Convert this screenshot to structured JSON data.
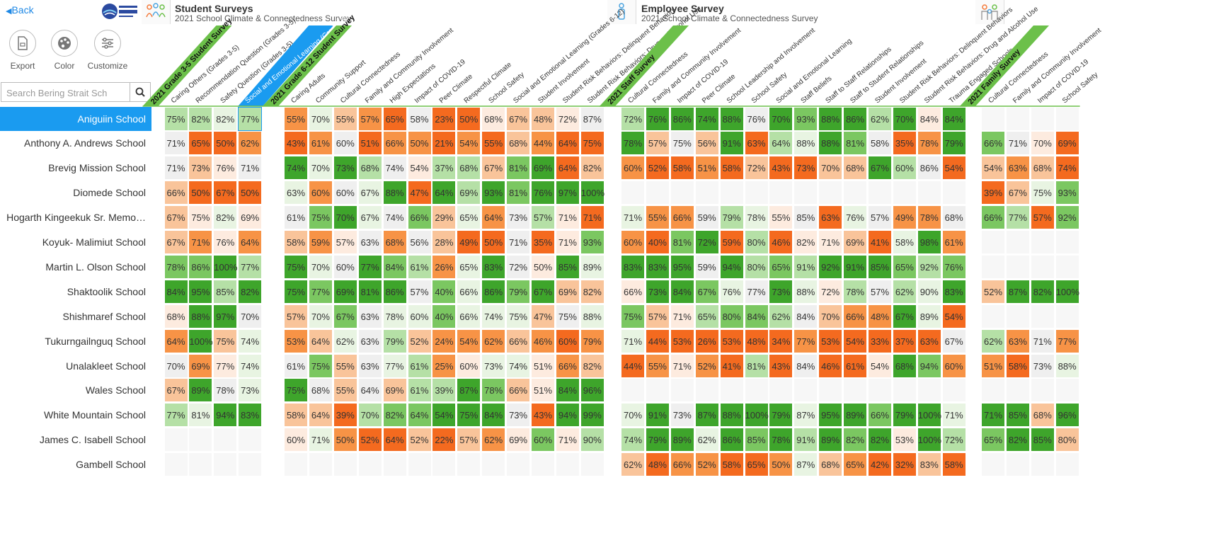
{
  "header": {
    "back_label": "Back",
    "student_title": "Student Surveys",
    "student_sub": "2021 School Climate & Connectedness Survey",
    "employee_title": "Employee Survey",
    "employee_sub": "2021 School Climate & Connectedness Survey"
  },
  "toolbar": {
    "export_label": "Export",
    "color_label": "Color",
    "customize_label": "Customize"
  },
  "search": {
    "placeholder": "Search Bering Strait Sch"
  },
  "colors": {
    "dark_green": "#3ea52b",
    "mid_green": "#7bc761",
    "light_green": "#b5e0a6",
    "pale_green": "#e8f4e2",
    "neutral": "#efefef",
    "pale_orange": "#fdebdf",
    "light_orange": "#f9c49a",
    "mid_orange": "#f79346",
    "dark_orange": "#f46a1f",
    "selected": "#1a9bf0",
    "survey_band": "#6cc04a"
  },
  "groups": [
    {
      "title": "2021 Grade 3-5 Student Survey",
      "columns": [
        "Caring Others (Grades 3-5)",
        "Recommendation Question (Grades 3-5)",
        "Safety Question (Grades 3-5)",
        "Social and Emotional Learning (Grades 3-5)"
      ]
    },
    {
      "title": "2021 Grade 6-12 Student Survey",
      "columns": [
        "Caring Adults",
        "Community Support",
        "Cultural Connectedness",
        "Family and Community Involvement",
        "High Expectations",
        "Impact of COVID-19",
        "Peer Climate",
        "Respectful Climate",
        "School Safety",
        "Social and Emotional Learning (Grades 6-12)",
        "Student Involvement",
        "Student Risk Behaviors: Delinquent Behaviors",
        "Student Risk Behaviors: Drug and Alcohol Use"
      ]
    },
    {
      "title": "2021 Staff Survey",
      "columns": [
        "Cultural Connectedness",
        "Family and Community Involvement",
        "Impact of COVID-19",
        "Peer Climate",
        "School Leadership and Involvement",
        "School Safety",
        "Social and Emotional Learning",
        "Staff Beliefs",
        "Staff to Staff Relationships",
        "Staff to Student Relationships",
        "Student Involvement",
        "Student Risk Behaviors: Delinquent Behaviors",
        "Student Risk Behaviors: Drug and Alcohol Use",
        "Trauma Engaged Schools"
      ]
    },
    {
      "title": "2021 Family Survey",
      "columns": [
        "Cultural Connectedness",
        "Family and Community Involvement",
        "Impact of COVID-19",
        "School Safety"
      ]
    }
  ],
  "schools": [
    {
      "name": "Aniguiin School",
      "g1": [
        "75%",
        "82%",
        "82%",
        "77%"
      ],
      "g2": [
        "55%",
        "70%",
        "55%",
        "57%",
        "65%",
        "58%",
        "23%",
        "50%",
        "68%",
        "67%",
        "48%",
        "72%",
        "87%"
      ],
      "g3": [
        "72%",
        "76%",
        "86%",
        "74%",
        "88%",
        "76%",
        "70%",
        "93%",
        "88%",
        "86%",
        "62%",
        "70%",
        "84%",
        "84%"
      ],
      "g4": [
        "",
        "",
        "",
        ""
      ]
    },
    {
      "name": "Anthony A. Andrews School",
      "g1": [
        "71%",
        "65%",
        "50%",
        "62%"
      ],
      "g2": [
        "43%",
        "61%",
        "60%",
        "51%",
        "66%",
        "50%",
        "21%",
        "54%",
        "55%",
        "68%",
        "44%",
        "64%",
        "75%"
      ],
      "g3": [
        "78%",
        "57%",
        "75%",
        "56%",
        "91%",
        "63%",
        "64%",
        "88%",
        "88%",
        "81%",
        "58%",
        "35%",
        "78%",
        "79%"
      ],
      "g4": [
        "66%",
        "71%",
        "70%",
        "69%"
      ]
    },
    {
      "name": "Brevig Mission School",
      "g1": [
        "71%",
        "73%",
        "76%",
        "71%"
      ],
      "g2": [
        "74%",
        "70%",
        "73%",
        "68%",
        "74%",
        "54%",
        "37%",
        "68%",
        "67%",
        "81%",
        "69%",
        "64%",
        "82%"
      ],
      "g3": [
        "60%",
        "52%",
        "58%",
        "51%",
        "58%",
        "72%",
        "43%",
        "73%",
        "70%",
        "68%",
        "67%",
        "60%",
        "86%",
        "54%"
      ],
      "g4": [
        "54%",
        "63%",
        "68%",
        "74%"
      ]
    },
    {
      "name": "Diomede School",
      "g1": [
        "66%",
        "50%",
        "67%",
        "50%"
      ],
      "g2": [
        "63%",
        "60%",
        "60%",
        "67%",
        "88%",
        "47%",
        "64%",
        "69%",
        "93%",
        "81%",
        "76%",
        "97%",
        "100%"
      ],
      "g3": [
        "",
        "",
        "",
        "",
        "",
        "",
        "",
        "",
        "",
        "",
        "",
        "",
        "",
        ""
      ],
      "g4": [
        "39%",
        "67%",
        "75%",
        "93%"
      ]
    },
    {
      "name": "Hogarth Kingeekuk Sr. Memo…",
      "g1": [
        "67%",
        "75%",
        "82%",
        "69%"
      ],
      "g2": [
        "61%",
        "75%",
        "70%",
        "67%",
        "74%",
        "66%",
        "29%",
        "65%",
        "64%",
        "73%",
        "57%",
        "71%",
        "71%"
      ],
      "g3": [
        "71%",
        "55%",
        "66%",
        "59%",
        "79%",
        "78%",
        "55%",
        "85%",
        "63%",
        "76%",
        "57%",
        "49%",
        "78%",
        "68%"
      ],
      "g4": [
        "66%",
        "77%",
        "57%",
        "92%"
      ]
    },
    {
      "name": "Koyuk- Malimiut School",
      "g1": [
        "67%",
        "71%",
        "76%",
        "64%"
      ],
      "g2": [
        "58%",
        "59%",
        "57%",
        "63%",
        "68%",
        "56%",
        "28%",
        "49%",
        "50%",
        "71%",
        "35%",
        "71%",
        "93%"
      ],
      "g3": [
        "60%",
        "40%",
        "81%",
        "72%",
        "59%",
        "80%",
        "46%",
        "82%",
        "71%",
        "69%",
        "41%",
        "58%",
        "98%",
        "61%"
      ],
      "g4": [
        "",
        "",
        "",
        ""
      ]
    },
    {
      "name": "Martin L. Olson School",
      "g1": [
        "78%",
        "86%",
        "100%",
        "77%"
      ],
      "g2": [
        "75%",
        "70%",
        "60%",
        "77%",
        "84%",
        "61%",
        "26%",
        "65%",
        "83%",
        "72%",
        "50%",
        "85%",
        "89%"
      ],
      "g3": [
        "83%",
        "83%",
        "95%",
        "59%",
        "94%",
        "80%",
        "65%",
        "91%",
        "92%",
        "91%",
        "85%",
        "65%",
        "92%",
        "76%"
      ],
      "g4": [
        "",
        "",
        "",
        ""
      ]
    },
    {
      "name": "Shaktoolik School",
      "g1": [
        "84%",
        "95%",
        "85%",
        "82%"
      ],
      "g2": [
        "75%",
        "77%",
        "69%",
        "81%",
        "86%",
        "57%",
        "40%",
        "66%",
        "86%",
        "79%",
        "67%",
        "69%",
        "82%"
      ],
      "g3": [
        "66%",
        "73%",
        "84%",
        "67%",
        "76%",
        "77%",
        "73%",
        "88%",
        "72%",
        "78%",
        "57%",
        "62%",
        "90%",
        "83%"
      ],
      "g4": [
        "52%",
        "87%",
        "82%",
        "100%"
      ]
    },
    {
      "name": "Shishmaref School",
      "g1": [
        "68%",
        "88%",
        "97%",
        "70%"
      ],
      "g2": [
        "57%",
        "70%",
        "67%",
        "63%",
        "78%",
        "60%",
        "40%",
        "66%",
        "74%",
        "75%",
        "47%",
        "75%",
        "88%"
      ],
      "g3": [
        "75%",
        "57%",
        "71%",
        "65%",
        "80%",
        "84%",
        "62%",
        "84%",
        "70%",
        "66%",
        "48%",
        "67%",
        "89%",
        "54%"
      ],
      "g4": [
        "",
        "",
        "",
        ""
      ]
    },
    {
      "name": "Tukurngailnguq School",
      "g1": [
        "64%",
        "100%",
        "75%",
        "74%"
      ],
      "g2": [
        "53%",
        "64%",
        "62%",
        "63%",
        "79%",
        "52%",
        "24%",
        "54%",
        "62%",
        "66%",
        "46%",
        "60%",
        "79%"
      ],
      "g3": [
        "71%",
        "44%",
        "53%",
        "26%",
        "53%",
        "48%",
        "34%",
        "77%",
        "53%",
        "54%",
        "33%",
        "37%",
        "63%",
        "67%"
      ],
      "g4": [
        "62%",
        "63%",
        "71%",
        "77%"
      ]
    },
    {
      "name": "Unalakleet School",
      "g1": [
        "70%",
        "69%",
        "77%",
        "74%"
      ],
      "g2": [
        "61%",
        "75%",
        "55%",
        "63%",
        "77%",
        "61%",
        "25%",
        "60%",
        "73%",
        "74%",
        "51%",
        "66%",
        "82%"
      ],
      "g3": [
        "44%",
        "55%",
        "71%",
        "52%",
        "41%",
        "81%",
        "43%",
        "84%",
        "46%",
        "61%",
        "54%",
        "68%",
        "94%",
        "60%"
      ],
      "g4": [
        "51%",
        "58%",
        "73%",
        "88%"
      ]
    },
    {
      "name": "Wales School",
      "g1": [
        "67%",
        "89%",
        "78%",
        "73%"
      ],
      "g2": [
        "75%",
        "68%",
        "55%",
        "64%",
        "69%",
        "61%",
        "39%",
        "87%",
        "78%",
        "66%",
        "51%",
        "84%",
        "96%"
      ],
      "g3": [
        "",
        "",
        "",
        "",
        "",
        "",
        "",
        "",
        "",
        "",
        "",
        "",
        "",
        ""
      ],
      "g4": [
        "",
        "",
        "",
        ""
      ]
    },
    {
      "name": "White Mountain School",
      "g1": [
        "77%",
        "81%",
        "94%",
        "83%"
      ],
      "g2": [
        "58%",
        "64%",
        "39%",
        "70%",
        "82%",
        "64%",
        "54%",
        "75%",
        "84%",
        "73%",
        "43%",
        "94%",
        "99%"
      ],
      "g3": [
        "70%",
        "91%",
        "73%",
        "87%",
        "88%",
        "100%",
        "79%",
        "87%",
        "95%",
        "89%",
        "66%",
        "79%",
        "100%",
        "71%"
      ],
      "g4": [
        "71%",
        "85%",
        "68%",
        "96%"
      ]
    },
    {
      "name": "James C. Isabell School",
      "g1": [
        "",
        "",
        "",
        ""
      ],
      "g2": [
        "60%",
        "71%",
        "50%",
        "52%",
        "64%",
        "52%",
        "22%",
        "57%",
        "62%",
        "69%",
        "60%",
        "71%",
        "90%"
      ],
      "g3": [
        "74%",
        "79%",
        "89%",
        "62%",
        "86%",
        "85%",
        "78%",
        "91%",
        "89%",
        "82%",
        "82%",
        "53%",
        "100%",
        "72%"
      ],
      "g4": [
        "65%",
        "82%",
        "85%",
        "80%"
      ]
    },
    {
      "name": "Gambell School",
      "g1": [
        "",
        "",
        "",
        ""
      ],
      "g2": [
        "",
        "",
        "",
        "",
        "",
        "",
        "",
        "",
        "",
        "",
        "",
        "",
        ""
      ],
      "g3": [
        "62%",
        "48%",
        "66%",
        "52%",
        "58%",
        "65%",
        "50%",
        "87%",
        "68%",
        "65%",
        "42%",
        "32%",
        "83%",
        "58%"
      ],
      "g4": [
        "",
        "",
        "",
        ""
      ]
    }
  ]
}
